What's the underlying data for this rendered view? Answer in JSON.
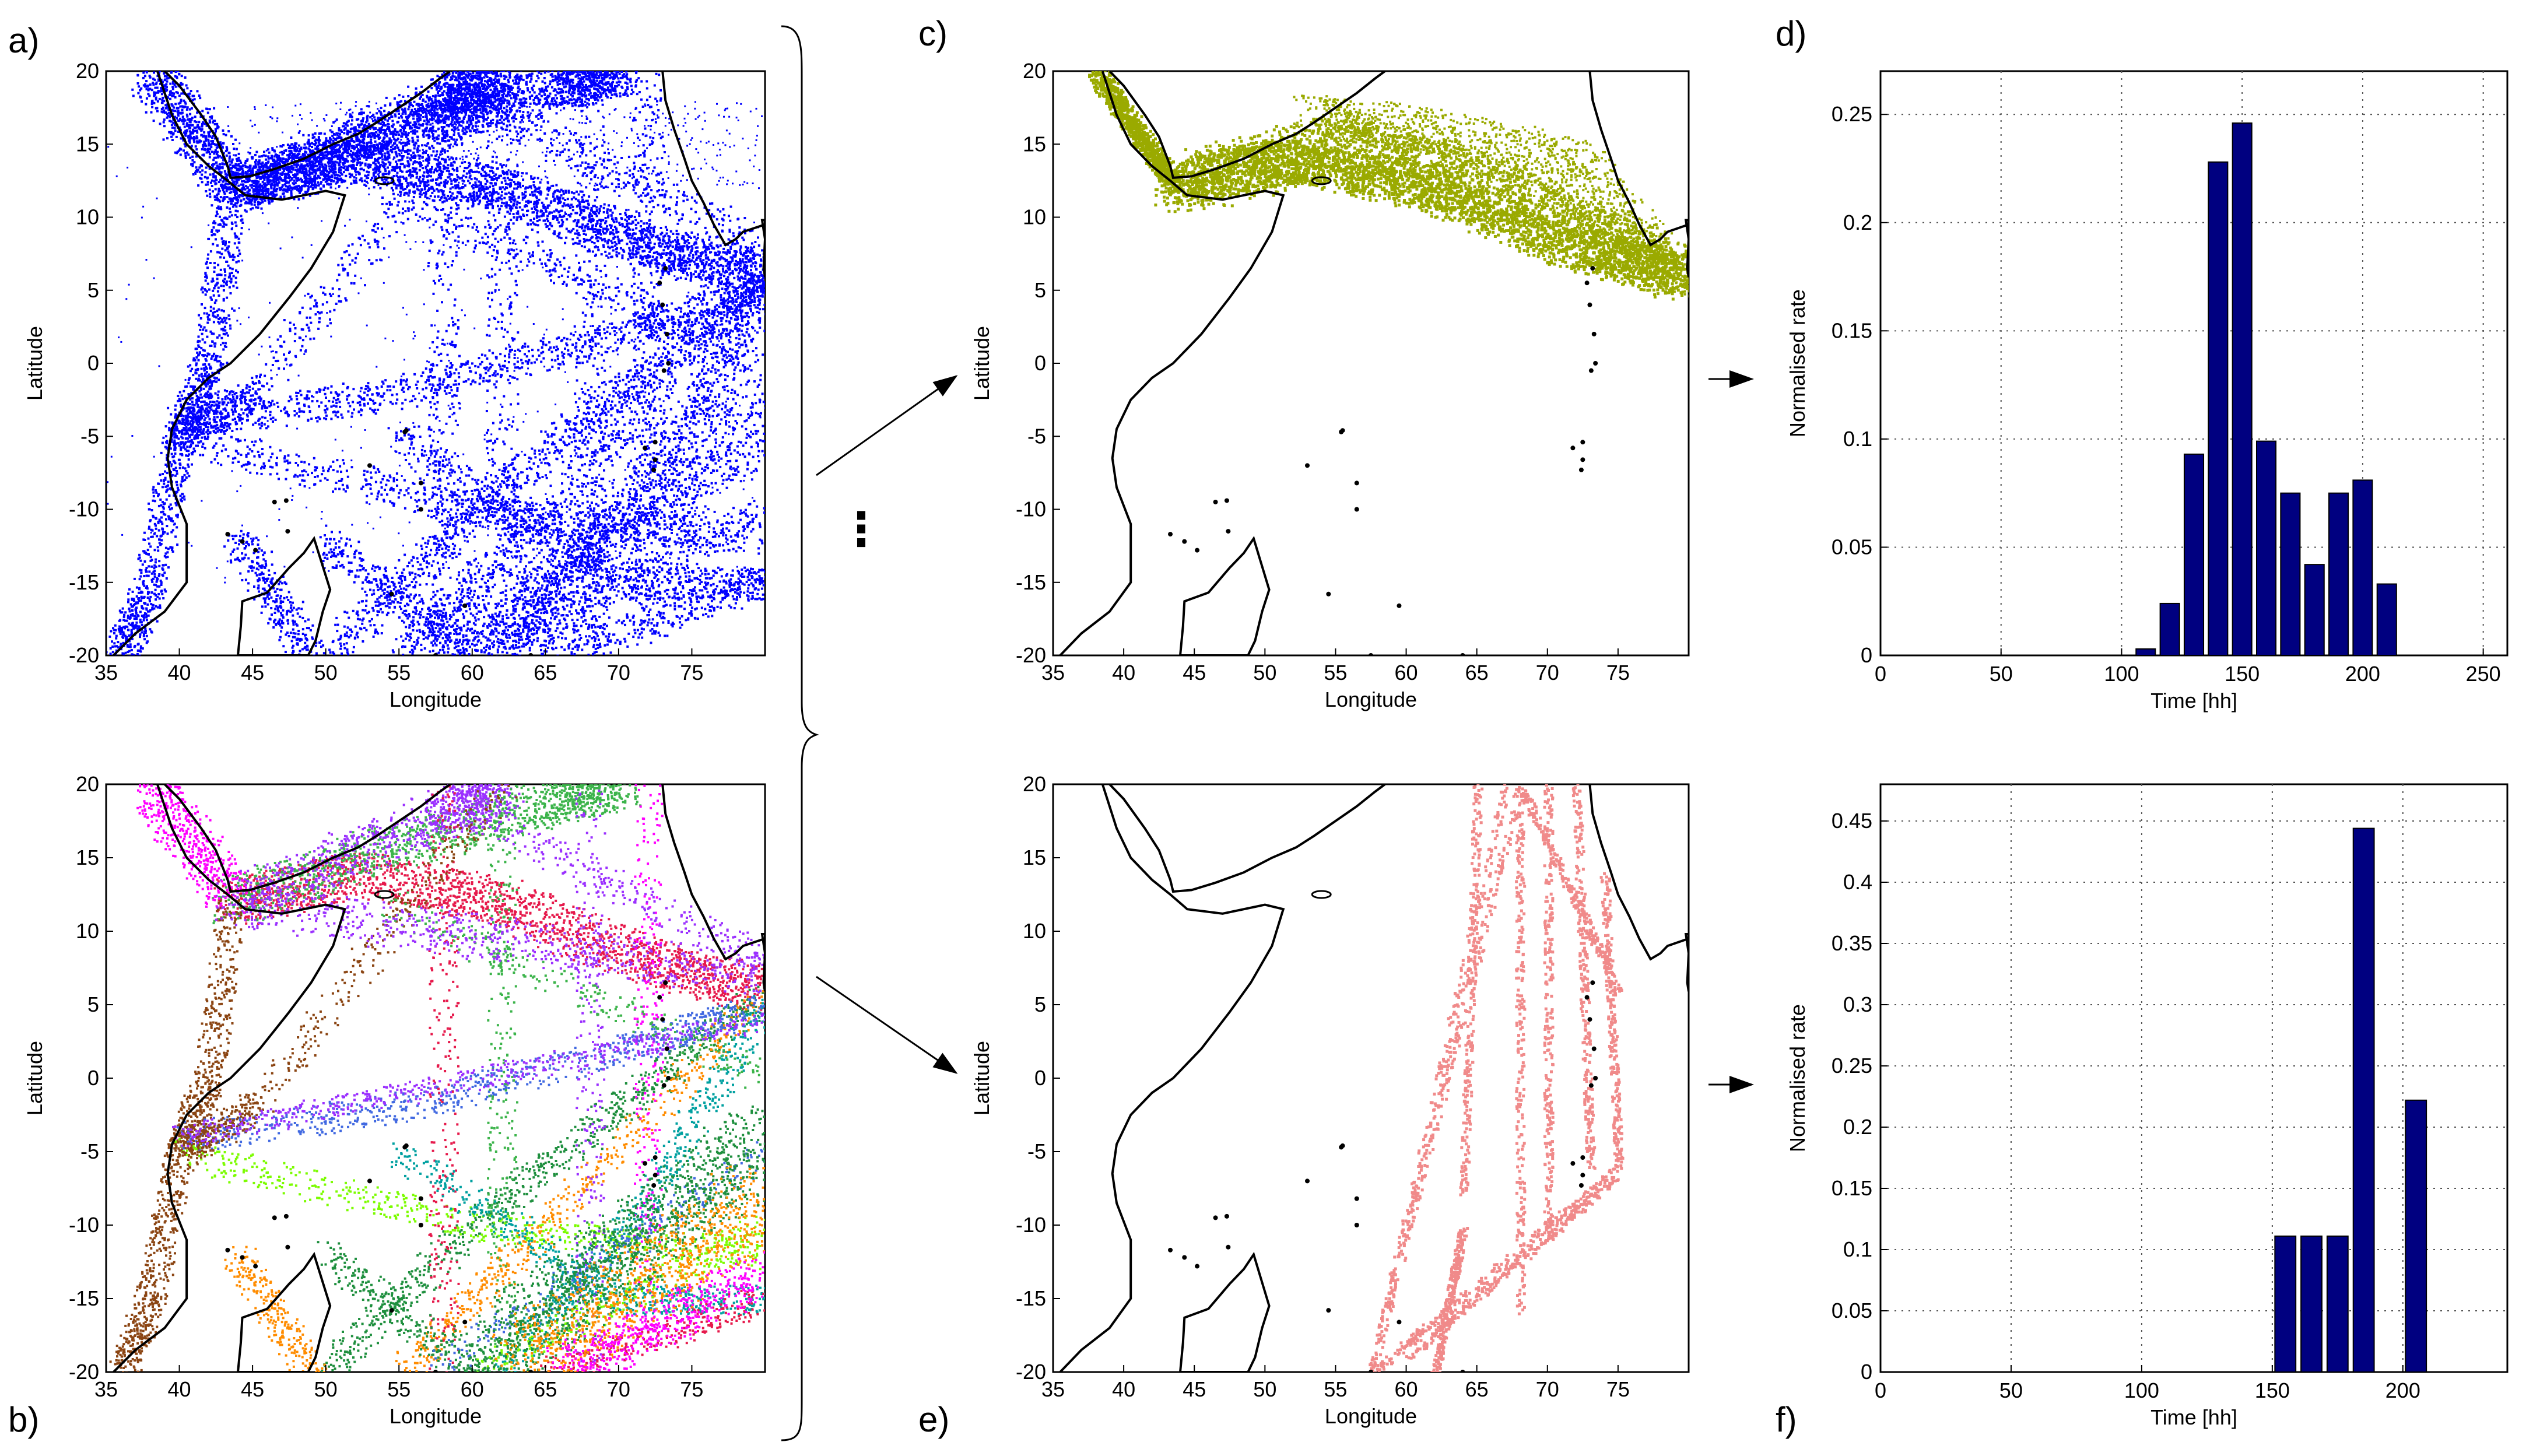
{
  "panel_labels": {
    "a": "a)",
    "b": "b)",
    "c": "c)",
    "d": "d)",
    "e": "e)",
    "f": "f)"
  },
  "ellipsis": "⋮",
  "colors": {
    "all_tracks": "#0000ff",
    "cluster_c": "#9aaa00",
    "cluster_e": "#f08a8a",
    "bars": "#000080",
    "multi": [
      "#e6194b",
      "#3cb44b",
      "#9b30ff",
      "#ff00ff",
      "#1e8f3e",
      "#ff8c00",
      "#00a0a0",
      "#8b4513",
      "#4169e1",
      "#7cfc00"
    ]
  },
  "maps": [
    {
      "id": "a",
      "type": "scatter",
      "xlabel": "Longitude",
      "ylabel": "Latitude",
      "xlim": [
        35,
        80
      ],
      "ylim": [
        -20,
        20
      ],
      "xticks": [
        "35",
        "40",
        "45",
        "50",
        "55",
        "60",
        "65",
        "70",
        "75"
      ],
      "yticks": [
        "20",
        "15",
        "10",
        "5",
        "0",
        "-5",
        "-10",
        "-15",
        "-20"
      ]
    },
    {
      "id": "b",
      "type": "scatter",
      "xlabel": "Longitude",
      "ylabel": "Latitude",
      "xlim": [
        35,
        80
      ],
      "ylim": [
        -20,
        20
      ],
      "xticks": [
        "35",
        "40",
        "45",
        "50",
        "55",
        "60",
        "65",
        "70",
        "75"
      ],
      "yticks": [
        "20",
        "15",
        "10",
        "5",
        "0",
        "-5",
        "-10",
        "-15",
        "-20"
      ]
    },
    {
      "id": "c",
      "type": "scatter",
      "xlabel": "Longitude",
      "ylabel": "Latitude",
      "xlim": [
        35,
        80
      ],
      "ylim": [
        -20,
        20
      ],
      "xticks": [
        "35",
        "40",
        "45",
        "50",
        "55",
        "60",
        "65",
        "70",
        "75"
      ],
      "yticks": [
        "20",
        "15",
        "10",
        "5",
        "0",
        "-5",
        "-10",
        "-15",
        "-20"
      ]
    },
    {
      "id": "e",
      "type": "scatter",
      "xlabel": "Longitude",
      "ylabel": "Latitude",
      "xlim": [
        35,
        80
      ],
      "ylim": [
        -20,
        20
      ],
      "xticks": [
        "35",
        "40",
        "45",
        "50",
        "55",
        "60",
        "65",
        "70",
        "75"
      ],
      "yticks": [
        "20",
        "15",
        "10",
        "5",
        "0",
        "-5",
        "-10",
        "-15",
        "-20"
      ]
    }
  ],
  "chart_data": [
    {
      "id": "d",
      "type": "bar",
      "xlabel": "Time [hh]",
      "ylabel": "Normalised rate",
      "xlim": [
        0,
        260
      ],
      "ylim": [
        0,
        0.27
      ],
      "xticks": [
        0,
        50,
        100,
        150,
        200,
        250
      ],
      "yticks": [
        0,
        0.05,
        0.1,
        0.15,
        0.2,
        0.25
      ],
      "xtick_labels": [
        "0",
        "50",
        "100",
        "150",
        "200",
        "250"
      ],
      "ytick_labels": [
        "0",
        "0.05",
        "0.1",
        "0.15",
        "0.2",
        "0.25"
      ],
      "bin_width": 10,
      "x": [
        110,
        120,
        130,
        140,
        150,
        160,
        170,
        180,
        190,
        200,
        210,
        220
      ],
      "values": [
        0.003,
        0.024,
        0.093,
        0.228,
        0.246,
        0.099,
        0.075,
        0.042,
        0.075,
        0.081,
        0.033,
        0.0
      ],
      "grid": true
    },
    {
      "id": "f",
      "type": "bar",
      "xlabel": "Time [hh]",
      "ylabel": "Normalised rate",
      "xlim": [
        0,
        240
      ],
      "ylim": [
        0,
        0.48
      ],
      "xticks": [
        0,
        50,
        100,
        150,
        200
      ],
      "yticks": [
        0,
        0.05,
        0.1,
        0.15,
        0.2,
        0.25,
        0.3,
        0.35,
        0.4,
        0.45
      ],
      "xtick_labels": [
        "0",
        "50",
        "100",
        "150",
        "200"
      ],
      "ytick_labels": [
        "0",
        "0.05",
        "0.1",
        "0.15",
        "0.2",
        "0.25",
        "0.3",
        "0.35",
        "0.4",
        "0.45"
      ],
      "bin_width": 10,
      "x": [
        155,
        165,
        175,
        185,
        205
      ],
      "values": [
        0.111,
        0.111,
        0.111,
        0.444,
        0.222
      ],
      "grid": true
    }
  ]
}
